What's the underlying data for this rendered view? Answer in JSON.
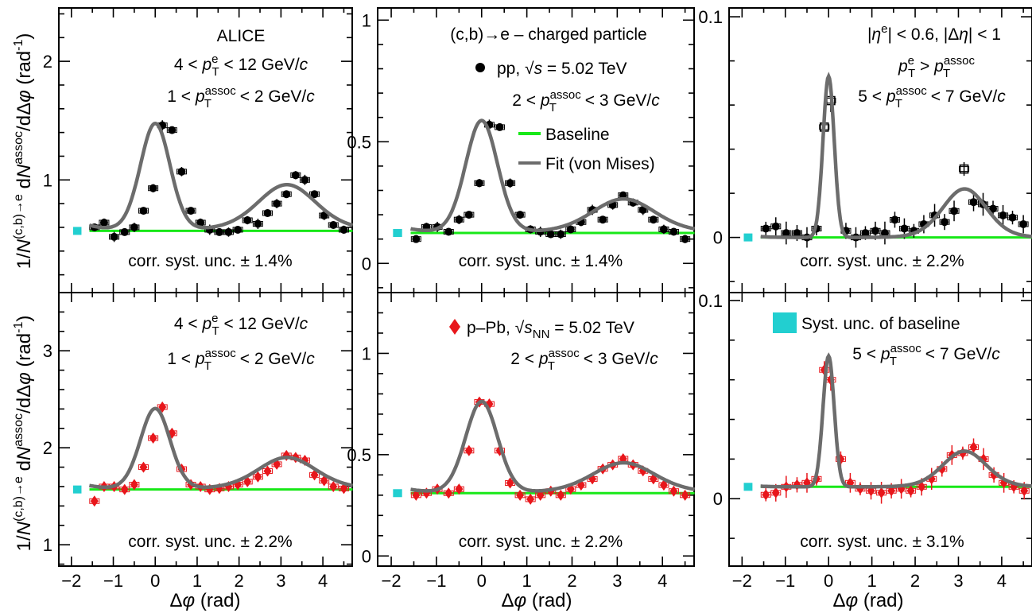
{
  "figure": {
    "xlabel": "Δφ (rad)",
    "ylabel": "1/N^(c,b)→e dN^assoc/dΔφ (rad^-1)"
  },
  "colors": {
    "pp_marker": "#000000",
    "ppb_marker": "#e8161b",
    "baseline": "#18e818",
    "fit": "#6c6c6c",
    "baseline_unc": "#22cfd0"
  },
  "legend": {
    "pp": "pp, √s = 5.02 TeV",
    "ppb": "p–Pb, √sNN = 5.02 TeV",
    "baseline": "Baseline",
    "fit": "Fit (von Mises)",
    "syst_baseline": "Syst. unc. of baseline"
  },
  "annotations": {
    "alice": "ALICE",
    "process": "(c,b)→e – charged particle",
    "eta_cut": "|ηe| < 0.6, |Δη| < 1",
    "pt_e": "4 < pTe < 12 GeV/c",
    "pt_order": "pTe > pTassoc",
    "assoc_1_2": "1 < pTassoc < 2 GeV/c",
    "assoc_2_3": "2 < pTassoc < 3 GeV/c",
    "assoc_5_7": "5 < pTassoc < 7 GeV/c"
  },
  "chart_data": [
    {
      "type": "scatter",
      "system": "pp",
      "x": [
        -1.45,
        -1.22,
        -0.98,
        -0.73,
        -0.5,
        -0.28,
        -0.05,
        0.17,
        0.4,
        0.63,
        0.85,
        1.08,
        1.3,
        1.53,
        1.75,
        1.97,
        2.2,
        2.45,
        2.68,
        2.9,
        3.13,
        3.35,
        3.57,
        3.8,
        4.03,
        4.25,
        4.5
      ],
      "y": [
        0.6,
        0.64,
        0.52,
        0.56,
        0.6,
        0.74,
        0.93,
        1.46,
        1.42,
        1.07,
        0.74,
        0.64,
        0.58,
        0.56,
        0.56,
        0.58,
        0.66,
        0.63,
        0.72,
        0.8,
        0.88,
        1.04,
        1.0,
        0.88,
        0.7,
        0.62,
        0.58
      ],
      "baseline": 0.57,
      "fit": {
        "baseline": 0.57,
        "near": {
          "A": 0.9,
          "kappa": 8.0
        },
        "away": {
          "A": 0.39,
          "kappa": 2.1
        }
      },
      "ylim": [
        0.05,
        2.45
      ],
      "yticks": [
        1,
        2
      ],
      "syst": "corr. syst. unc. ± 1.4%"
    },
    {
      "type": "scatter",
      "system": "pp",
      "x": [
        -1.45,
        -1.22,
        -0.98,
        -0.73,
        -0.5,
        -0.28,
        -0.05,
        0.17,
        0.4,
        0.63,
        0.85,
        1.08,
        1.3,
        1.53,
        1.75,
        1.97,
        2.2,
        2.45,
        2.68,
        2.9,
        3.13,
        3.35,
        3.57,
        3.8,
        4.03,
        4.25,
        4.5
      ],
      "y": [
        0.1,
        0.15,
        0.15,
        0.13,
        0.18,
        0.2,
        0.33,
        0.57,
        0.56,
        0.33,
        0.2,
        0.14,
        0.13,
        0.12,
        0.12,
        0.14,
        0.17,
        0.22,
        0.18,
        0.24,
        0.28,
        0.25,
        0.22,
        0.18,
        0.14,
        0.13,
        0.1
      ],
      "baseline": 0.125,
      "fit": {
        "baseline": 0.125,
        "near": {
          "A": 0.46,
          "kappa": 8.0
        },
        "away": {
          "A": 0.14,
          "kappa": 2.1
        }
      },
      "ylim": [
        -0.12,
        1.05
      ],
      "yticks": [
        0,
        0.5,
        1
      ],
      "syst": "corr. syst. unc. ± 1.4%"
    },
    {
      "type": "scatter",
      "system": "pp",
      "x": [
        -1.45,
        -1.22,
        -0.98,
        -0.73,
        -0.5,
        -0.28,
        -0.1,
        0.05,
        0.4,
        0.63,
        0.85,
        1.08,
        1.3,
        1.53,
        1.75,
        1.97,
        2.2,
        2.45,
        2.68,
        2.9,
        3.13,
        3.35,
        3.57,
        3.8,
        4.03,
        4.25,
        4.5
      ],
      "y": [
        0.004,
        0.005,
        0.002,
        0.002,
        0.0,
        0.004,
        0.05,
        0.062,
        0.003,
        0.0,
        0.002,
        0.003,
        0.002,
        0.008,
        0.004,
        0.003,
        0.006,
        0.01,
        0.007,
        0.012,
        0.031,
        0.016,
        0.015,
        0.013,
        0.01,
        0.009,
        0.006
      ],
      "open_markers": [
        6,
        7,
        20
      ],
      "baseline": 0.0,
      "fit": {
        "baseline": 0.0,
        "near": {
          "A": 0.073,
          "kappa": 60.0
        },
        "away": {
          "A": 0.022,
          "kappa": 4.0
        }
      },
      "ylim": [
        -0.025,
        0.104
      ],
      "yticks": [
        0,
        0.1
      ],
      "syst": "corr. syst. unc. ± 2.2%"
    },
    {
      "type": "scatter",
      "system": "p-Pb",
      "x": [
        -1.45,
        -1.22,
        -0.98,
        -0.73,
        -0.5,
        -0.28,
        -0.05,
        0.17,
        0.4,
        0.63,
        0.85,
        1.08,
        1.3,
        1.53,
        1.75,
        1.97,
        2.2,
        2.45,
        2.68,
        2.9,
        3.13,
        3.35,
        3.57,
        3.8,
        4.03,
        4.25,
        4.5
      ],
      "y": [
        1.45,
        1.6,
        1.6,
        1.57,
        1.62,
        1.8,
        2.1,
        2.42,
        2.15,
        1.78,
        1.62,
        1.6,
        1.57,
        1.58,
        1.6,
        1.62,
        1.65,
        1.7,
        1.76,
        1.83,
        1.92,
        1.9,
        1.87,
        1.72,
        1.66,
        1.6,
        1.58
      ],
      "baseline": 1.57,
      "fit": {
        "baseline": 1.57,
        "near": {
          "A": 0.83,
          "kappa": 8.0
        },
        "away": {
          "A": 0.33,
          "kappa": 2.1
        }
      },
      "ylim": [
        0.78,
        3.6
      ],
      "yticks": [
        1,
        2,
        3
      ],
      "syst": "corr. syst. unc. ± 2.2%"
    },
    {
      "type": "scatter",
      "system": "p-Pb",
      "x": [
        -1.45,
        -1.22,
        -0.98,
        -0.73,
        -0.5,
        -0.28,
        -0.05,
        0.17,
        0.4,
        0.63,
        0.85,
        1.08,
        1.3,
        1.53,
        1.75,
        1.97,
        2.2,
        2.45,
        2.68,
        2.9,
        3.13,
        3.35,
        3.57,
        3.8,
        4.03,
        4.25,
        4.5
      ],
      "y": [
        0.3,
        0.31,
        0.33,
        0.31,
        0.33,
        0.52,
        0.76,
        0.75,
        0.52,
        0.36,
        0.3,
        0.28,
        0.3,
        0.32,
        0.3,
        0.33,
        0.35,
        0.38,
        0.43,
        0.45,
        0.48,
        0.45,
        0.42,
        0.38,
        0.35,
        0.32,
        0.3
      ],
      "baseline": 0.31,
      "fit": {
        "baseline": 0.31,
        "near": {
          "A": 0.45,
          "kappa": 8.0
        },
        "away": {
          "A": 0.15,
          "kappa": 2.1
        }
      },
      "ylim": [
        -0.05,
        1.3
      ],
      "yticks": [
        0,
        0.5,
        1
      ],
      "syst": "corr. syst. unc. ± 2.2%"
    },
    {
      "type": "scatter",
      "system": "p-Pb",
      "x": [
        -1.45,
        -1.22,
        -0.98,
        -0.73,
        -0.5,
        -0.28,
        -0.1,
        0.05,
        0.28,
        0.5,
        0.73,
        0.98,
        1.22,
        1.45,
        1.68,
        1.9,
        2.15,
        2.38,
        2.62,
        2.85,
        3.1,
        3.35,
        3.58,
        3.82,
        4.05,
        4.28,
        4.52
      ],
      "y": [
        0.002,
        0.003,
        0.006,
        0.007,
        0.008,
        0.01,
        0.065,
        0.06,
        0.02,
        0.008,
        0.005,
        0.004,
        0.003,
        0.004,
        0.005,
        0.004,
        0.006,
        0.01,
        0.015,
        0.022,
        0.023,
        0.026,
        0.02,
        0.012,
        0.008,
        0.006,
        0.004
      ],
      "baseline": 0.006,
      "fit": {
        "baseline": 0.006,
        "near": {
          "A": 0.066,
          "kappa": 60.0
        },
        "away": {
          "A": 0.018,
          "kappa": 4.0
        }
      },
      "ylim": [
        -0.034,
        0.104
      ],
      "yticks": [
        0,
        0.1
      ],
      "syst": "corr. syst. unc. ± 3.1%"
    }
  ]
}
